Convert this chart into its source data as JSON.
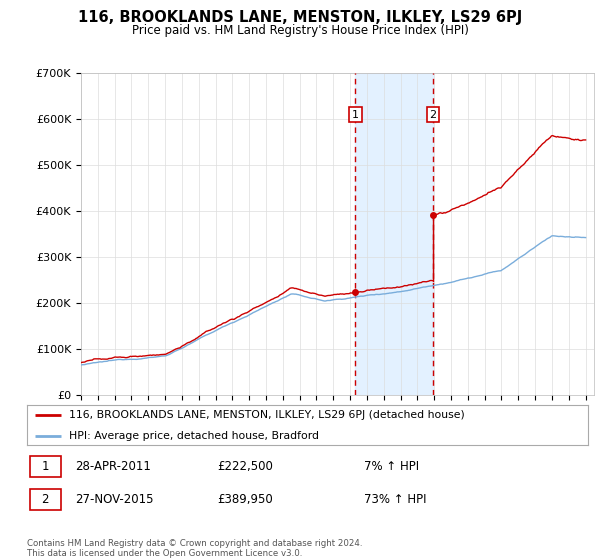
{
  "title": "116, BROOKLANDS LANE, MENSTON, ILKLEY, LS29 6PJ",
  "subtitle": "Price paid vs. HM Land Registry's House Price Index (HPI)",
  "ylim": [
    0,
    700000
  ],
  "yticks": [
    0,
    100000,
    200000,
    300000,
    400000,
    500000,
    600000,
    700000
  ],
  "ytick_labels": [
    "£0",
    "£100K",
    "£200K",
    "£300K",
    "£400K",
    "£500K",
    "£600K",
    "£700K"
  ],
  "property_color": "#cc0000",
  "hpi_color": "#7aaddb",
  "shade_color": "#ddeeff",
  "vline_color": "#cc0000",
  "sale1_date": 2011.32,
  "sale1_price": 222500,
  "sale2_date": 2015.92,
  "sale2_price": 389950,
  "sale1_above_hpi": 1.07,
  "sale2_above_hpi": 1.73,
  "legend_property": "116, BROOKLANDS LANE, MENSTON, ILKLEY, LS29 6PJ (detached house)",
  "legend_hpi": "HPI: Average price, detached house, Bradford",
  "footnote": "Contains HM Land Registry data © Crown copyright and database right 2024.\nThis data is licensed under the Open Government Licence v3.0.",
  "background_color": "#ffffff"
}
